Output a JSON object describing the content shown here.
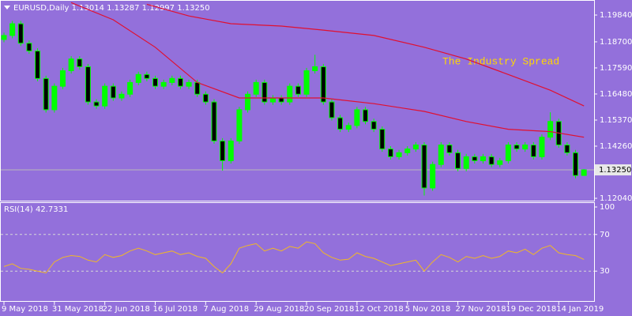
{
  "chart_data": {
    "type": "candlestick",
    "title": "EURUSD,Daily  1.13014 1.13287 1.12997 1.13250",
    "annotation": "The Industry Spread",
    "categories": [
      "9 May 2018",
      null,
      null,
      null,
      null,
      null,
      "31 May 2018",
      null,
      null,
      null,
      null,
      null,
      "22 Jun 2018",
      null,
      null,
      null,
      null,
      null,
      "16 Jul 2018",
      null,
      null,
      null,
      null,
      null,
      "7 Aug 2018",
      null,
      null,
      null,
      null,
      null,
      "29 Aug 2018",
      null,
      null,
      null,
      null,
      null,
      "20 Sep 2018",
      null,
      null,
      null,
      null,
      null,
      "12 Oct 2018",
      null,
      null,
      null,
      null,
      null,
      "5 Nov 2018",
      null,
      null,
      null,
      null,
      null,
      "27 Nov 2018",
      null,
      null,
      null,
      null,
      null,
      "19 Dec 2018",
      null,
      null,
      null,
      null,
      null,
      "14 Jan 2019",
      null,
      null,
      null
    ],
    "open": [
      1.188,
      1.1897,
      1.1947,
      1.1864,
      1.1831,
      1.1714,
      1.1581,
      1.1681,
      1.1747,
      1.1797,
      1.1764,
      1.1614,
      1.1597,
      1.1681,
      1.1631,
      1.1647,
      1.1697,
      1.1731,
      1.1714,
      1.1681,
      1.1697,
      1.1714,
      1.1681,
      1.1697,
      1.1647,
      1.1614,
      1.1448,
      1.1364,
      1.1448,
      1.1581,
      1.1647,
      1.1697,
      1.1614,
      1.1631,
      1.1614,
      1.1681,
      1.1647,
      1.1747,
      1.1764,
      1.1614,
      1.1547,
      1.1498,
      1.1514,
      1.1581,
      1.1531,
      1.1498,
      1.1414,
      1.1381,
      1.1398,
      1.1414,
      1.1431,
      1.1248,
      1.1348,
      1.1431,
      1.1398,
      1.1331,
      1.1381,
      1.1364,
      1.1381,
      1.1348,
      1.1364,
      1.1431,
      1.1414,
      1.1431,
      1.1381,
      1.1464,
      1.1531,
      1.1431,
      1.1398,
      1.13014
    ],
    "high": [
      1.1909,
      1.1959,
      1.1959,
      1.1876,
      1.1843,
      1.1726,
      1.1693,
      1.1759,
      1.1809,
      1.1809,
      1.1776,
      1.1626,
      1.1693,
      1.1693,
      1.1659,
      1.1709,
      1.1743,
      1.1743,
      1.1726,
      1.1709,
      1.1726,
      1.1726,
      1.1709,
      1.1709,
      1.1659,
      1.1626,
      1.146,
      1.146,
      1.1593,
      1.1659,
      1.1709,
      1.1709,
      1.1643,
      1.1643,
      1.1693,
      1.1693,
      1.1759,
      1.1815,
      1.1776,
      1.1626,
      1.1559,
      1.1526,
      1.1593,
      1.1593,
      1.1543,
      1.151,
      1.1426,
      1.141,
      1.1426,
      1.1443,
      1.1443,
      1.136,
      1.1443,
      1.1443,
      1.141,
      1.1393,
      1.1393,
      1.1393,
      1.1393,
      1.1376,
      1.1443,
      1.1443,
      1.1443,
      1.1443,
      1.1476,
      1.157,
      1.1543,
      1.1443,
      1.141,
      1.13287
    ],
    "low": [
      1.1868,
      1.1885,
      1.1852,
      1.1819,
      1.1702,
      1.1569,
      1.1569,
      1.1669,
      1.1735,
      1.1752,
      1.1602,
      1.1585,
      1.1585,
      1.1619,
      1.1619,
      1.1635,
      1.1685,
      1.1702,
      1.1669,
      1.1669,
      1.1685,
      1.1669,
      1.1669,
      1.1635,
      1.1602,
      1.1436,
      1.1322,
      1.1352,
      1.1436,
      1.1569,
      1.1635,
      1.1602,
      1.1602,
      1.1602,
      1.1602,
      1.1635,
      1.1635,
      1.1735,
      1.1602,
      1.1535,
      1.1486,
      1.1486,
      1.1502,
      1.1519,
      1.1486,
      1.1402,
      1.1369,
      1.1369,
      1.1386,
      1.1402,
      1.1216,
      1.1236,
      1.1336,
      1.1386,
      1.1319,
      1.1319,
      1.1352,
      1.1352,
      1.1336,
      1.1336,
      1.1352,
      1.1402,
      1.1402,
      1.1369,
      1.1369,
      1.1452,
      1.1419,
      1.1386,
      1.1289,
      1.12997
    ],
    "close": [
      1.1897,
      1.1947,
      1.1864,
      1.1831,
      1.1714,
      1.1581,
      1.1681,
      1.1747,
      1.1797,
      1.1764,
      1.1614,
      1.1597,
      1.1681,
      1.1631,
      1.1647,
      1.1697,
      1.1731,
      1.1714,
      1.1681,
      1.1697,
      1.1714,
      1.1681,
      1.1697,
      1.1647,
      1.1614,
      1.1448,
      1.1364,
      1.1448,
      1.1581,
      1.1647,
      1.1697,
      1.1614,
      1.1631,
      1.1614,
      1.1681,
      1.1647,
      1.1747,
      1.1764,
      1.1614,
      1.1547,
      1.1498,
      1.1514,
      1.1581,
      1.1531,
      1.1498,
      1.1414,
      1.1381,
      1.1398,
      1.1414,
      1.1431,
      1.1248,
      1.1348,
      1.1431,
      1.1398,
      1.1331,
      1.1381,
      1.1364,
      1.1381,
      1.1348,
      1.1364,
      1.1431,
      1.1414,
      1.1431,
      1.1381,
      1.1464,
      1.1531,
      1.1431,
      1.1398,
      1.1301,
      1.1325
    ],
    "color": "#00ff00",
    "ylim": [
      1.1194,
      1.2048
    ],
    "yticks": [
      {
        "value": 1.1204,
        "label": "1.12040"
      },
      {
        "value": 1.1426,
        "label": "1.14260"
      },
      {
        "value": 1.1537,
        "label": "1.15370"
      },
      {
        "value": 1.1648,
        "label": "1.16480"
      },
      {
        "value": 1.1759,
        "label": "1.17590"
      },
      {
        "value": 1.187,
        "label": "1.18700"
      },
      {
        "value": 1.1984,
        "label": "1.19840"
      }
    ],
    "price_label": {
      "value": 1.1325,
      "label": "1.13250"
    },
    "moving_averages": [
      {
        "color": "#e01030",
        "x": [
          17,
          22,
          27,
          33,
          38,
          44,
          50,
          55,
          60,
          65,
          69
        ],
        "values": [
          1.203,
          1.198,
          1.1947,
          1.1937,
          1.192,
          1.1897,
          1.1847,
          1.1797,
          1.1731,
          1.1664,
          1.1597
        ]
      },
      {
        "color": "#e01030",
        "x": [
          8,
          13,
          18,
          23,
          28,
          33,
          38,
          44,
          50,
          55,
          60,
          65,
          69
        ],
        "values": [
          1.2037,
          1.1964,
          1.1847,
          1.1697,
          1.1631,
          1.1631,
          1.1631,
          1.1607,
          1.1574,
          1.1531,
          1.1498,
          1.1488,
          1.1464
        ]
      }
    ],
    "rsi": {
      "title": "RSI(14) 42.7331",
      "color": "#f2b824",
      "ylim": [
        0,
        100
      ],
      "yticks": [
        30,
        70,
        100
      ],
      "values": [
        35,
        38,
        33,
        32,
        30,
        28,
        40,
        45,
        47,
        46,
        42,
        40,
        48,
        45,
        47,
        52,
        55,
        52,
        48,
        50,
        52,
        48,
        50,
        46,
        44,
        35,
        28,
        38,
        55,
        58,
        60,
        52,
        55,
        52,
        57,
        55,
        62,
        60,
        50,
        45,
        42,
        43,
        50,
        46,
        44,
        40,
        36,
        38,
        40,
        42,
        30,
        40,
        48,
        45,
        40,
        46,
        44,
        47,
        44,
        46,
        52,
        50,
        54,
        48,
        55,
        58,
        50,
        48,
        47,
        42.7331
      ]
    }
  }
}
